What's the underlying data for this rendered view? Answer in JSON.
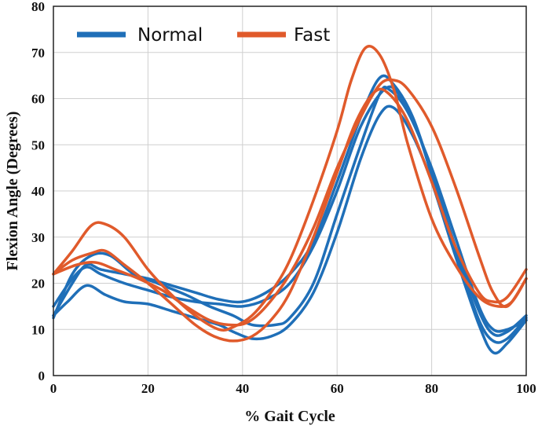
{
  "chart_data": {
    "type": "line",
    "title": "",
    "xlabel": "% Gait Cycle",
    "ylabel": "Flexion Angle (Degrees)",
    "xlim": [
      0,
      100
    ],
    "ylim": [
      0,
      80
    ],
    "xticks": [
      "0",
      "20",
      "40",
      "60",
      "80",
      "100"
    ],
    "yticks": [
      "0",
      "10",
      "20",
      "30",
      "40",
      "50",
      "60",
      "70",
      "80"
    ],
    "grid": true,
    "legend": {
      "placement": "top-left",
      "entries": [
        "Normal",
        "Fast"
      ]
    },
    "colors": {
      "Normal": "#1f6fb8",
      "Fast": "#e05a2b"
    },
    "series": [
      {
        "group": "Normal",
        "points": [
          [
            0,
            13
          ],
          [
            4,
            20
          ],
          [
            7,
            24
          ],
          [
            10,
            23
          ],
          [
            15,
            22
          ],
          [
            20,
            21
          ],
          [
            25,
            19.5
          ],
          [
            30,
            18
          ],
          [
            35,
            16.5
          ],
          [
            40,
            16
          ],
          [
            45,
            18
          ],
          [
            50,
            22
          ],
          [
            55,
            29
          ],
          [
            60,
            42
          ],
          [
            65,
            56
          ],
          [
            69,
            64.5
          ],
          [
            72,
            63
          ],
          [
            76,
            56
          ],
          [
            80,
            44
          ],
          [
            85,
            28
          ],
          [
            90,
            14
          ],
          [
            93,
            9
          ],
          [
            96,
            9.5
          ],
          [
            100,
            13
          ]
        ]
      },
      {
        "group": "Normal",
        "points": [
          [
            0,
            15
          ],
          [
            4,
            21
          ],
          [
            7,
            23.5
          ],
          [
            10,
            22
          ],
          [
            15,
            20
          ],
          [
            20,
            18.5
          ],
          [
            25,
            17
          ],
          [
            30,
            16
          ],
          [
            35,
            15.5
          ],
          [
            40,
            15
          ],
          [
            45,
            16.5
          ],
          [
            50,
            20
          ],
          [
            55,
            28
          ],
          [
            60,
            40
          ],
          [
            65,
            54
          ],
          [
            70,
            62
          ],
          [
            73,
            61
          ],
          [
            77,
            53
          ],
          [
            81,
            40
          ],
          [
            86,
            24
          ],
          [
            90,
            12
          ],
          [
            93,
            7.5
          ],
          [
            96,
            8
          ],
          [
            100,
            12.5
          ]
        ]
      },
      {
        "group": "Normal",
        "points": [
          [
            0,
            13
          ],
          [
            3,
            16
          ],
          [
            7,
            19.5
          ],
          [
            11,
            17.5
          ],
          [
            15,
            16
          ],
          [
            20,
            15.5
          ],
          [
            25,
            14
          ],
          [
            30,
            12.5
          ],
          [
            35,
            11
          ],
          [
            38,
            9.5
          ],
          [
            42,
            8
          ],
          [
            46,
            8.5
          ],
          [
            50,
            11
          ],
          [
            55,
            18
          ],
          [
            60,
            31
          ],
          [
            65,
            47
          ],
          [
            69,
            56.5
          ],
          [
            72,
            58
          ],
          [
            76,
            52
          ],
          [
            80,
            42
          ],
          [
            85,
            26
          ],
          [
            90,
            11
          ],
          [
            93,
            5
          ],
          [
            96,
            7
          ],
          [
            100,
            12
          ]
        ]
      },
      {
        "group": "Normal",
        "points": [
          [
            0,
            12.5
          ],
          [
            4,
            22
          ],
          [
            8,
            26
          ],
          [
            12,
            26
          ],
          [
            17,
            22
          ],
          [
            22,
            20
          ],
          [
            28,
            17.5
          ],
          [
            33,
            15
          ],
          [
            38,
            13
          ],
          [
            42,
            11
          ],
          [
            47,
            11
          ],
          [
            50,
            12.5
          ],
          [
            55,
            20
          ],
          [
            60,
            35
          ],
          [
            65,
            50
          ],
          [
            69,
            61
          ],
          [
            71,
            62
          ],
          [
            75,
            57
          ],
          [
            80,
            45
          ],
          [
            85,
            30
          ],
          [
            90,
            15
          ],
          [
            93,
            10
          ],
          [
            96,
            10
          ],
          [
            100,
            12
          ]
        ]
      },
      {
        "group": "Fast",
        "points": [
          [
            0,
            22
          ],
          [
            4,
            27
          ],
          [
            8,
            32.5
          ],
          [
            11,
            32.8
          ],
          [
            15,
            30
          ],
          [
            20,
            23
          ],
          [
            25,
            17.5
          ],
          [
            30,
            13
          ],
          [
            35,
            10
          ],
          [
            38,
            10.5
          ],
          [
            42,
            13
          ],
          [
            46,
            18
          ],
          [
            50,
            25
          ],
          [
            55,
            38
          ],
          [
            60,
            53
          ],
          [
            63,
            64
          ],
          [
            66,
            71
          ],
          [
            69,
            69.5
          ],
          [
            72,
            62
          ],
          [
            75,
            50
          ],
          [
            80,
            34
          ],
          [
            85,
            24
          ],
          [
            90,
            17
          ],
          [
            94,
            15
          ],
          [
            97,
            16
          ],
          [
            100,
            21
          ]
        ]
      },
      {
        "group": "Fast",
        "points": [
          [
            0,
            22
          ],
          [
            4,
            25
          ],
          [
            8,
            26.5
          ],
          [
            11,
            27
          ],
          [
            15,
            24
          ],
          [
            20,
            20
          ],
          [
            25,
            15.5
          ],
          [
            30,
            11
          ],
          [
            34,
            8.5
          ],
          [
            38,
            7.5
          ],
          [
            42,
            8.5
          ],
          [
            46,
            12
          ],
          [
            50,
            18
          ],
          [
            55,
            30
          ],
          [
            60,
            44
          ],
          [
            64,
            55
          ],
          [
            68,
            61.5
          ],
          [
            71,
            61
          ],
          [
            75,
            55
          ],
          [
            80,
            42
          ],
          [
            85,
            28
          ],
          [
            90,
            18
          ],
          [
            93,
            16
          ],
          [
            96,
            17
          ],
          [
            100,
            23
          ]
        ]
      },
      {
        "group": "Fast",
        "points": [
          [
            0,
            22
          ],
          [
            5,
            24
          ],
          [
            9,
            24.5
          ],
          [
            13,
            23
          ],
          [
            18,
            21
          ],
          [
            23,
            18.5
          ],
          [
            28,
            15
          ],
          [
            33,
            12
          ],
          [
            37,
            11
          ],
          [
            41,
            11.5
          ],
          [
            45,
            15
          ],
          [
            50,
            22
          ],
          [
            55,
            32
          ],
          [
            60,
            45
          ],
          [
            65,
            56
          ],
          [
            69,
            63
          ],
          [
            72,
            64
          ],
          [
            75,
            62
          ],
          [
            80,
            54
          ],
          [
            85,
            41
          ],
          [
            90,
            26
          ],
          [
            93,
            18
          ],
          [
            96,
            15
          ],
          [
            100,
            21
          ]
        ]
      }
    ]
  }
}
